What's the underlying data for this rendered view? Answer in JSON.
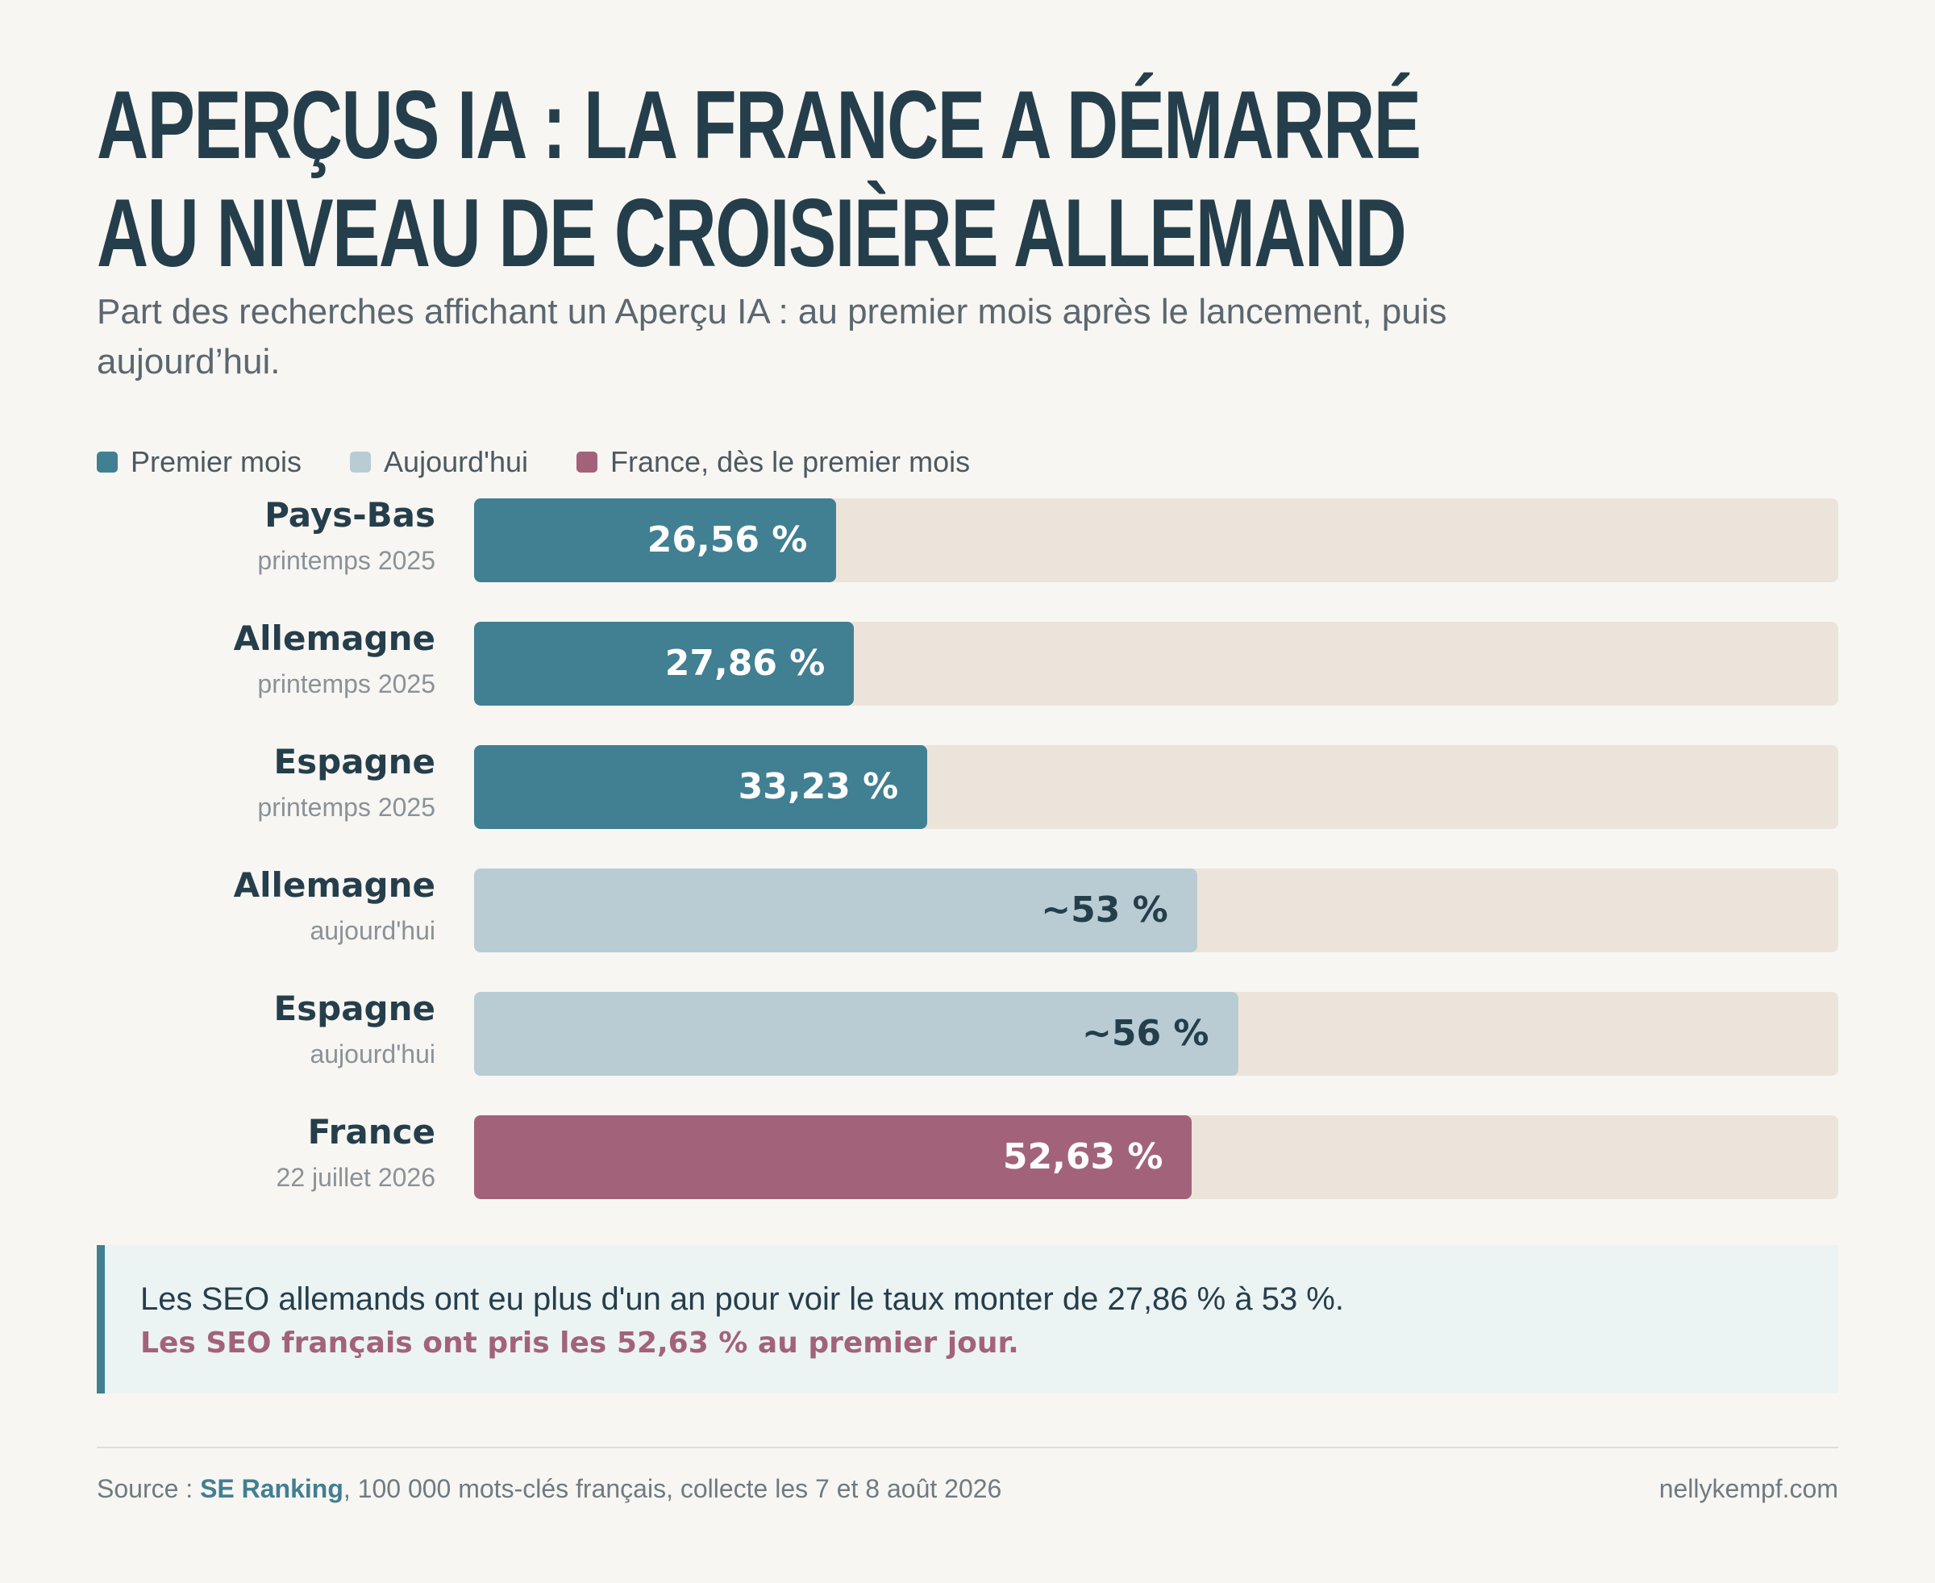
{
  "header": {
    "title_lines": [
      "Aperçus IA : la France a démarré",
      "au niveau de croisière allemand"
    ],
    "subtitle": "Part des recherches affichant un Aperçu IA : au premier mois après le lancement, puis aujourd’hui."
  },
  "legend": [
    {
      "label": "Premier mois",
      "color": "#417f92"
    },
    {
      "label": "Aujourd'hui",
      "color": "#b9ccd4"
    },
    {
      "label": "France, dès le premier mois",
      "color": "#a2637a"
    }
  ],
  "chart_data": {
    "type": "bar",
    "orientation": "horizontal",
    "xlim": [
      0,
      100
    ],
    "grid": false,
    "legend_position": "top-left",
    "categories": [
      {
        "name": "Pays-Bas",
        "period": "printemps 2025"
      },
      {
        "name": "Allemagne",
        "period": "printemps 2025"
      },
      {
        "name": "Espagne",
        "period": "printemps 2025"
      },
      {
        "name": "Allemagne",
        "period": "aujourd'hui"
      },
      {
        "name": "Espagne",
        "period": "aujourd'hui"
      },
      {
        "name": "France",
        "period": "22 juillet 2026"
      }
    ],
    "values": [
      26.56,
      27.86,
      33.23,
      53,
      56,
      52.63
    ],
    "value_labels": [
      "26,56 %",
      "27,86 %",
      "33,23 %",
      "~53 %",
      "~56 %",
      "52,63 %"
    ],
    "series_index": [
      0,
      0,
      0,
      1,
      1,
      2
    ],
    "value_text_colors": [
      "#ffffff",
      "#253e4b",
      "#ffffff"
    ],
    "track_color": "#ece4da"
  },
  "callout": {
    "line1": "Les SEO allemands ont eu plus d'un an pour voir le taux monter de 27,86 % à 53 %.",
    "line2": "Les SEO français ont pris les 52,63 % au premier jour."
  },
  "footer": {
    "source_prefix": "Source : ",
    "source_name": "SE Ranking",
    "source_rest": ", 100 000 mots-clés français, collecte les 7 et 8 août 2026",
    "site": "nellykempf.com"
  }
}
